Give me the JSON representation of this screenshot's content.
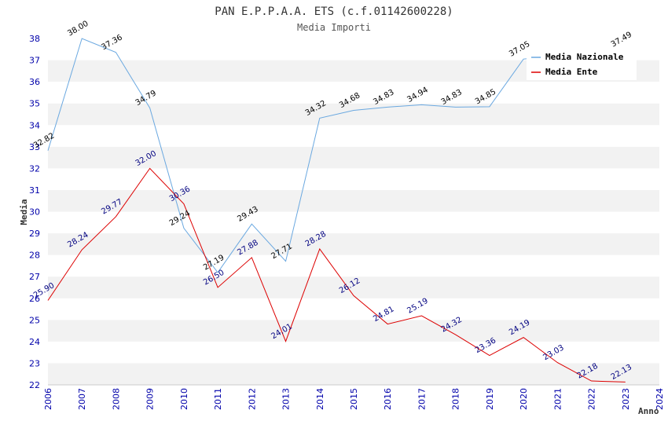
{
  "chart_data": {
    "type": "line",
    "title": "PAN E.P.P.A.A. ETS (c.f.01142600228)",
    "subtitle": "Media Importi",
    "xlabel": "Anno",
    "ylabel": "Media",
    "ylim": [
      22,
      38
    ],
    "yticks": [
      "22",
      "23",
      "24",
      "25",
      "26",
      "27",
      "28",
      "29",
      "30",
      "31",
      "32",
      "33",
      "34",
      "35",
      "36",
      "37",
      "38"
    ],
    "x": [
      "2006",
      "2007",
      "2008",
      "2009",
      "2010",
      "2011",
      "2012",
      "2013",
      "2014",
      "2015",
      "2016",
      "2017",
      "2018",
      "2019",
      "2020",
      "2021",
      "2022",
      "2023",
      "2024"
    ],
    "legend_position": "top-right",
    "grid": "horizontal-bands",
    "series": [
      {
        "name": "Media Nazionale",
        "color": "#6aa8e0",
        "values": [
          32.82,
          38.0,
          37.36,
          34.79,
          29.24,
          27.19,
          29.43,
          27.71,
          34.32,
          34.68,
          34.83,
          34.94,
          34.83,
          34.85,
          37.05,
          null,
          null,
          37.49,
          null
        ],
        "labels": [
          "32.82",
          "38.00",
          "37.36",
          "34.79",
          "29.24",
          "27.19",
          "29.43",
          "27.71",
          "34.32",
          "34.68",
          "34.83",
          "34.94",
          "34.83",
          "34.85",
          "37.05",
          null,
          null,
          "37.49",
          null
        ]
      },
      {
        "name": "Media Ente",
        "color": "#dd0000",
        "values": [
          25.9,
          28.24,
          29.77,
          32.0,
          30.36,
          26.5,
          27.88,
          24.01,
          28.28,
          26.12,
          24.81,
          25.19,
          24.32,
          23.36,
          24.19,
          23.03,
          22.18,
          22.13,
          null
        ],
        "labels": [
          "25.90",
          "28.24",
          "29.77",
          "32.00",
          "30.36",
          "26.50",
          "27.88",
          "24.01",
          "28.28",
          "26.12",
          "24.81",
          "25.19",
          "24.32",
          "23.36",
          "24.19",
          "23.03",
          "22.18",
          "22.13",
          null
        ]
      }
    ]
  }
}
